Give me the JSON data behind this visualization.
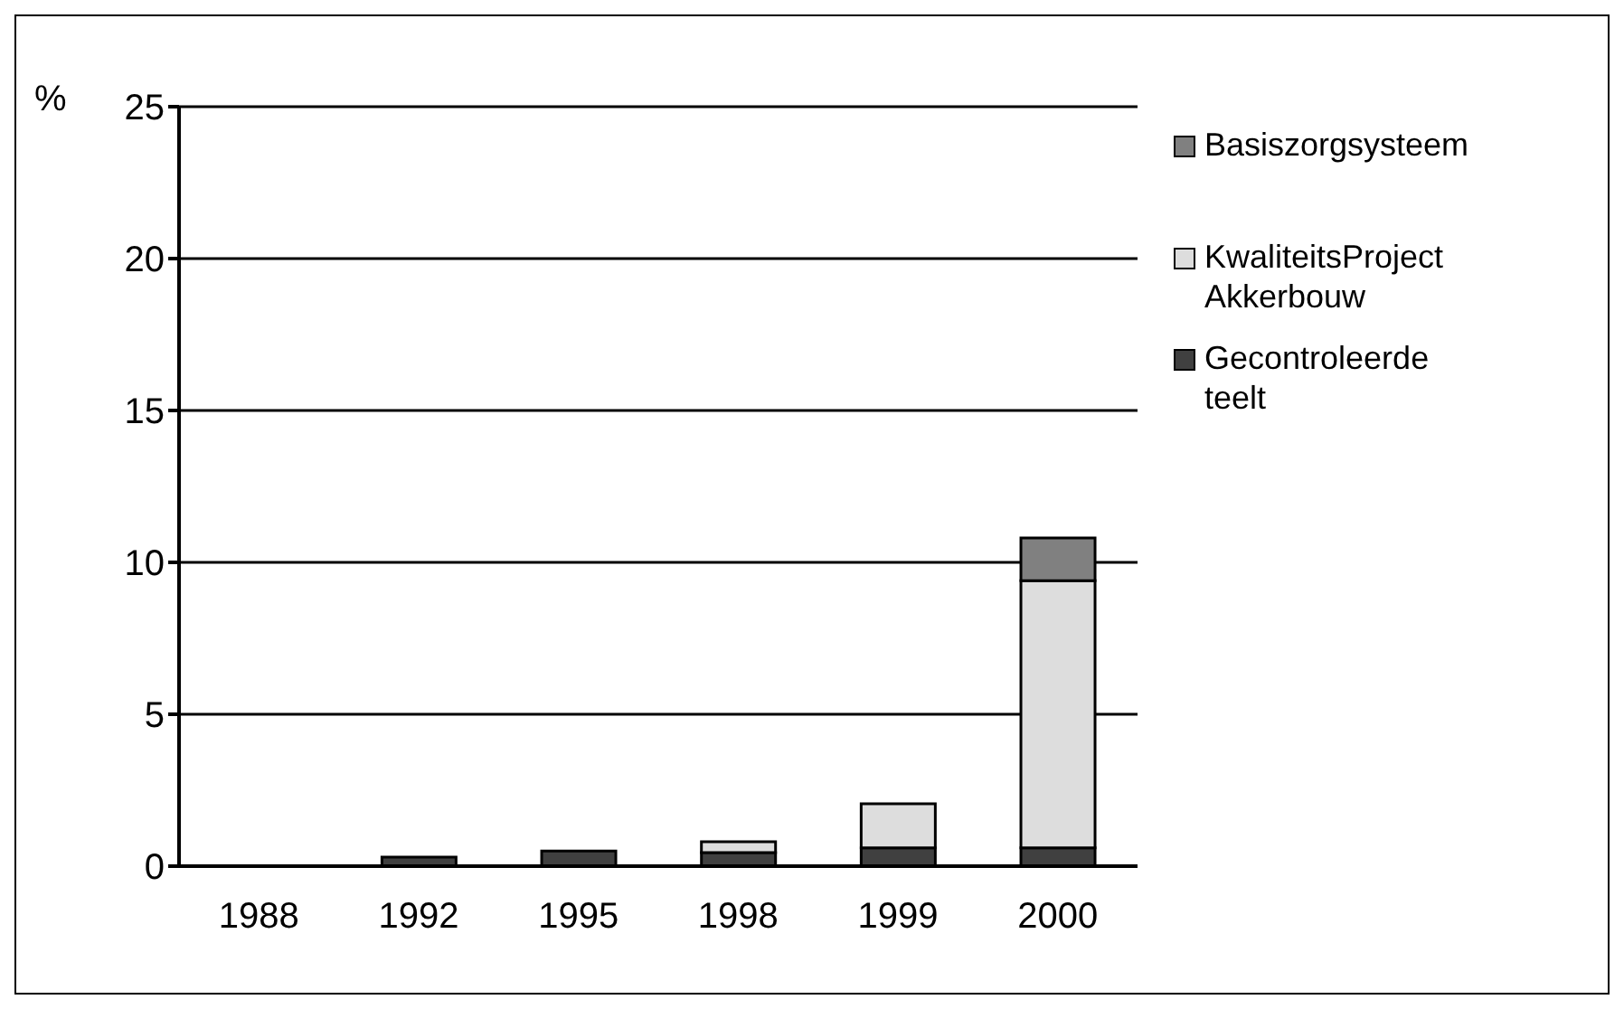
{
  "chart_data": {
    "type": "bar",
    "ylabel": "%",
    "categories": [
      "1988",
      "1992",
      "1995",
      "1998",
      "1999",
      "2000"
    ],
    "stacked": true,
    "series": [
      {
        "name": "Gecontroleerde teelt",
        "color": "#404040",
        "values": [
          0,
          0.3,
          0.5,
          0.45,
          0.6,
          0.6
        ]
      },
      {
        "name": "KwaliteitsProject Akkerbouw",
        "color": "#dddddd",
        "values": [
          0,
          0,
          0,
          0.35,
          1.45,
          8.8
        ]
      },
      {
        "name": "Basiszorgsysteem",
        "color": "#808080",
        "values": [
          0,
          0,
          0,
          0,
          0,
          1.4
        ]
      }
    ],
    "ylim": [
      0,
      25
    ],
    "yticks": [
      0,
      5,
      10,
      15,
      20,
      25
    ],
    "grid": "y",
    "legend": "right"
  }
}
